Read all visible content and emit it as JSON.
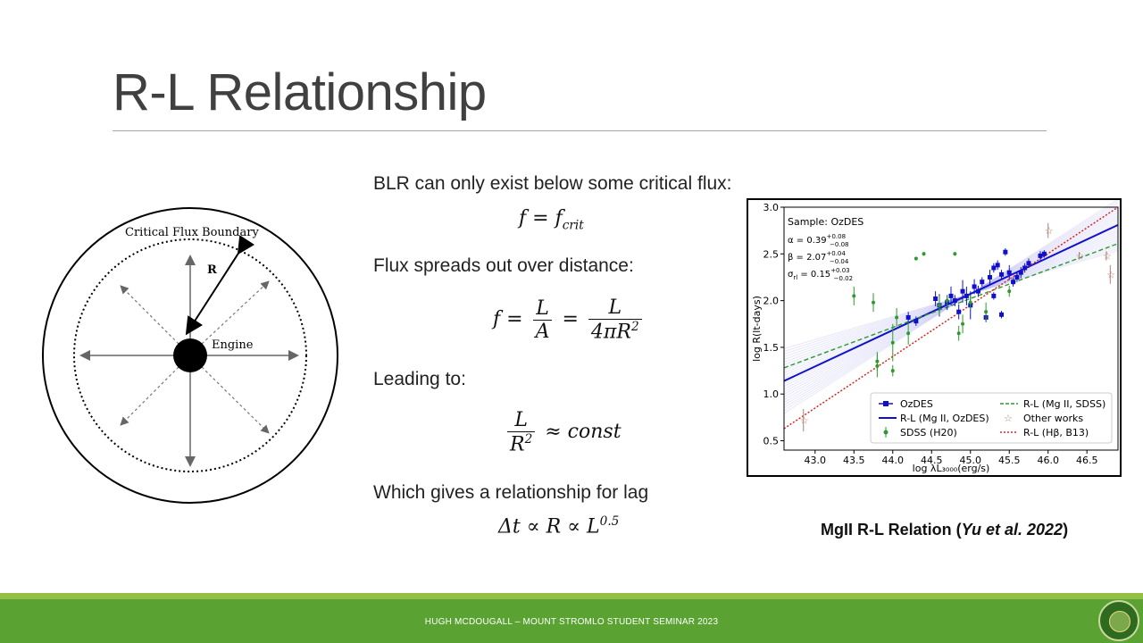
{
  "slide": {
    "title": "R-L Relationship",
    "footer": "HUGH MCDOUGALL – MOUNT STROMLO STUDENT SEMINAR 2023"
  },
  "diagram": {
    "boundary_label": "Critical Flux Boundary",
    "radius_label": "R",
    "engine_label": "Engine"
  },
  "text": {
    "line1": "BLR can only exist below some critical flux:",
    "line2": "Flux spreads out over distance:",
    "line3": "Leading to:",
    "line4": "Which gives a relationship for lag"
  },
  "equations": {
    "eq1": {
      "lhs": "f",
      "op": "=",
      "rhs": "f",
      "rhs_sub": "crit"
    },
    "eq2": {
      "lhs": "f",
      "num1": "L",
      "den1": "A",
      "num2": "L",
      "den2": "4πR",
      "den2_sup": "2"
    },
    "eq3": {
      "num": "L",
      "den": "R",
      "den_sup": "2",
      "rhs": "≈ const"
    },
    "eq4": {
      "text": "Δt ∝ R ∝ L",
      "sup": "0.5"
    }
  },
  "caption": {
    "prefix": "MgII R-L Relation (",
    "ref": "Yu et al. 2022",
    "suffix": ")"
  },
  "chart_data": {
    "type": "scatter",
    "xlabel": "log λL₃₀₀₀(erg/s)",
    "ylabel": "log R(lt-days)",
    "xlim": [
      42.6,
      46.9
    ],
    "ylim": [
      0.4,
      3.0
    ],
    "xticks": [
      "43.0",
      "43.5",
      "44.0",
      "44.5",
      "45.0",
      "45.5",
      "46.0",
      "46.5"
    ],
    "yticks": [
      "0.5",
      "1.0",
      "1.5",
      "2.0",
      "2.5",
      "3.0"
    ],
    "annotation": {
      "sample": "Sample: OzDES",
      "alpha": "α = 0.39",
      "alpha_up": "+0.08",
      "alpha_dn": "−0.08",
      "beta": "β = 2.07",
      "beta_up": "+0.04",
      "beta_dn": "−0.04",
      "sigma": "σ",
      "sigma_sub": "rl",
      "sigma_val": " = 0.15",
      "sigma_up": "+0.03",
      "sigma_dn": "−0.02"
    },
    "legend": {
      "placement": "lower-right",
      "entries": [
        "OzDES",
        "R-L (Mg II, SDSS)",
        "R-L (Mg II, OzDES)",
        "Other works",
        "SDSS (H20)",
        "R-L (Hβ, B13)"
      ]
    },
    "colors": {
      "ozdes": "#1010cc",
      "sdss": "#2e9a2e",
      "other": "#b08070",
      "hb": "#dd2222",
      "band": "#8a8ae8"
    },
    "lines": [
      {
        "name": "R-L (Mg II, OzDES)",
        "x": [
          42.6,
          46.9
        ],
        "y": [
          1.14,
          2.81
        ]
      },
      {
        "name": "R-L (Mg II, SDSS)",
        "x": [
          42.6,
          46.9
        ],
        "y": [
          1.28,
          2.61
        ]
      },
      {
        "name": "R-L (Hβ, B13)",
        "x": [
          42.6,
          46.9
        ],
        "y": [
          0.63,
          3.0
        ]
      }
    ],
    "series": [
      {
        "name": "OzDES",
        "points": [
          [
            44.3,
            1.78,
            0.05
          ],
          [
            44.55,
            2.02,
            0.08
          ],
          [
            44.6,
            1.95,
            0.12
          ],
          [
            44.7,
            1.98,
            0.08
          ],
          [
            44.75,
            2.05,
            0.1
          ],
          [
            44.8,
            2.0,
            0.06
          ],
          [
            44.85,
            1.88,
            0.08
          ],
          [
            44.9,
            2.1,
            0.12
          ],
          [
            44.95,
            2.05,
            0.1
          ],
          [
            45.0,
            1.95,
            0.15
          ],
          [
            45.05,
            2.15,
            0.08
          ],
          [
            45.1,
            2.1,
            0.06
          ],
          [
            45.15,
            2.2,
            0.05
          ],
          [
            45.2,
            1.82,
            0.05
          ],
          [
            45.25,
            2.25,
            0.08
          ],
          [
            45.3,
            2.35,
            0.05
          ],
          [
            45.35,
            2.38,
            0.05
          ],
          [
            45.4,
            2.28,
            0.05
          ],
          [
            45.4,
            1.85,
            0.04
          ],
          [
            45.45,
            2.52,
            0.04
          ],
          [
            45.5,
            2.3,
            0.08
          ],
          [
            45.55,
            2.2,
            0.05
          ],
          [
            45.6,
            2.25,
            0.05
          ],
          [
            45.65,
            2.3,
            0.06
          ],
          [
            45.7,
            2.35,
            0.05
          ],
          [
            45.75,
            2.4,
            0.05
          ],
          [
            45.9,
            2.48,
            0.05
          ],
          [
            45.95,
            2.5,
            0.04
          ],
          [
            44.2,
            1.82,
            0.06
          ],
          [
            45.3,
            2.05,
            0.04
          ]
        ]
      },
      {
        "name": "SDSS (H20)",
        "points": [
          [
            43.5,
            2.05,
            0.1
          ],
          [
            43.75,
            1.98,
            0.1
          ],
          [
            43.8,
            1.3,
            0.12
          ],
          [
            44.0,
            1.25,
            0.06
          ],
          [
            44.0,
            1.55,
            0.2
          ],
          [
            44.05,
            1.82,
            0.1
          ],
          [
            44.2,
            1.65,
            0.12
          ],
          [
            44.3,
            2.45,
            0.02
          ],
          [
            44.4,
            2.5,
            0.02
          ],
          [
            44.6,
            1.95,
            0.1
          ],
          [
            44.7,
            2.0,
            0.06
          ],
          [
            44.8,
            2.5,
            0.02
          ],
          [
            44.85,
            1.65,
            0.08
          ],
          [
            44.9,
            1.75,
            0.1
          ],
          [
            45.0,
            1.98,
            0.08
          ],
          [
            45.2,
            1.88,
            0.1
          ],
          [
            45.5,
            2.1,
            0.06
          ],
          [
            43.8,
            1.35,
            0.1
          ]
        ]
      },
      {
        "name": "Other works",
        "points": [
          [
            42.85,
            0.72,
            0.12
          ],
          [
            46.0,
            2.75,
            0.08
          ],
          [
            46.4,
            2.48,
            0.04
          ],
          [
            46.75,
            2.48,
            0.05
          ],
          [
            46.8,
            2.28,
            0.1
          ]
        ]
      }
    ]
  }
}
